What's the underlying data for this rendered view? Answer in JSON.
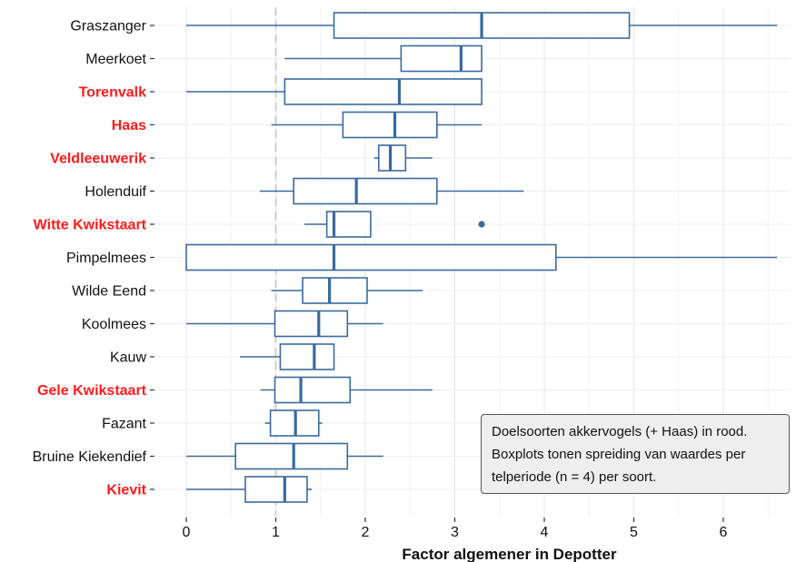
{
  "chart_data": {
    "type": "boxplot",
    "orientation": "horizontal",
    "xlabel": "Factor algemener in Depotter",
    "xlim": [
      0,
      6.6
    ],
    "xticks": [
      0,
      1,
      2,
      3,
      4,
      5,
      6
    ],
    "reference_line": 1,
    "grid": true,
    "colors": {
      "box": "#3a6a9e",
      "highlight_label": "#ff1a1a",
      "label": "#111111",
      "reference_line": "#cccccc"
    },
    "species": [
      {
        "name": "Graszanger",
        "highlight": false,
        "min": 0,
        "q1": 1.65,
        "median": 3.3,
        "q3": 4.95,
        "max": 6.6,
        "outliers": []
      },
      {
        "name": "Meerkoet",
        "highlight": false,
        "min": 1.1,
        "q1": 2.4,
        "median": 3.07,
        "q3": 3.3,
        "max": 3.3,
        "outliers": []
      },
      {
        "name": "Torenvalk",
        "highlight": true,
        "min": 0,
        "q1": 1.1,
        "median": 2.38,
        "q3": 3.3,
        "max": 3.3,
        "outliers": []
      },
      {
        "name": "Haas",
        "highlight": true,
        "min": 0.95,
        "q1": 1.75,
        "median": 2.33,
        "q3": 2.8,
        "max": 3.3,
        "outliers": []
      },
      {
        "name": "Veldleeuwerik",
        "highlight": true,
        "min": 2.1,
        "q1": 2.15,
        "median": 2.28,
        "q3": 2.45,
        "max": 2.75,
        "outliers": []
      },
      {
        "name": "Holenduif",
        "highlight": false,
        "min": 0.82,
        "q1": 1.2,
        "median": 1.9,
        "q3": 2.8,
        "max": 3.77,
        "outliers": []
      },
      {
        "name": "Witte Kwikstaart",
        "highlight": true,
        "min": 1.32,
        "q1": 1.57,
        "median": 1.65,
        "q3": 2.06,
        "max": 2.06,
        "outliers": [
          3.3
        ]
      },
      {
        "name": "Pimpelmees",
        "highlight": false,
        "min": 0,
        "q1": 0,
        "median": 1.65,
        "q3": 4.13,
        "max": 6.6,
        "outliers": []
      },
      {
        "name": "Wilde Eend",
        "highlight": false,
        "min": 0.95,
        "q1": 1.3,
        "median": 1.6,
        "q3": 2.02,
        "max": 2.64,
        "outliers": []
      },
      {
        "name": "Koolmees",
        "highlight": false,
        "min": 0,
        "q1": 0.99,
        "median": 1.48,
        "q3": 1.8,
        "max": 2.2,
        "outliers": []
      },
      {
        "name": "Kauw",
        "highlight": false,
        "min": 0.6,
        "q1": 1.05,
        "median": 1.43,
        "q3": 1.65,
        "max": 1.65,
        "outliers": []
      },
      {
        "name": "Gele Kwikstaart",
        "highlight": true,
        "min": 0.83,
        "q1": 0.99,
        "median": 1.28,
        "q3": 1.83,
        "max": 2.75,
        "outliers": []
      },
      {
        "name": "Fazant",
        "highlight": false,
        "min": 0.88,
        "q1": 0.94,
        "median": 1.22,
        "q3": 1.48,
        "max": 1.52,
        "outliers": []
      },
      {
        "name": "Bruine Kiekendief",
        "highlight": false,
        "min": 0,
        "q1": 0.55,
        "median": 1.2,
        "q3": 1.8,
        "max": 2.2,
        "outliers": []
      },
      {
        "name": "Kievit",
        "highlight": true,
        "min": 0,
        "q1": 0.66,
        "median": 1.1,
        "q3": 1.35,
        "max": 1.4,
        "outliers": []
      }
    ]
  },
  "annotation": {
    "lines": [
      "Doelsoorten akkervogels (+ Haas) in rood.",
      "Boxplots tonen spreiding van waardes per",
      "telperiode (n = 4) per soort."
    ]
  }
}
